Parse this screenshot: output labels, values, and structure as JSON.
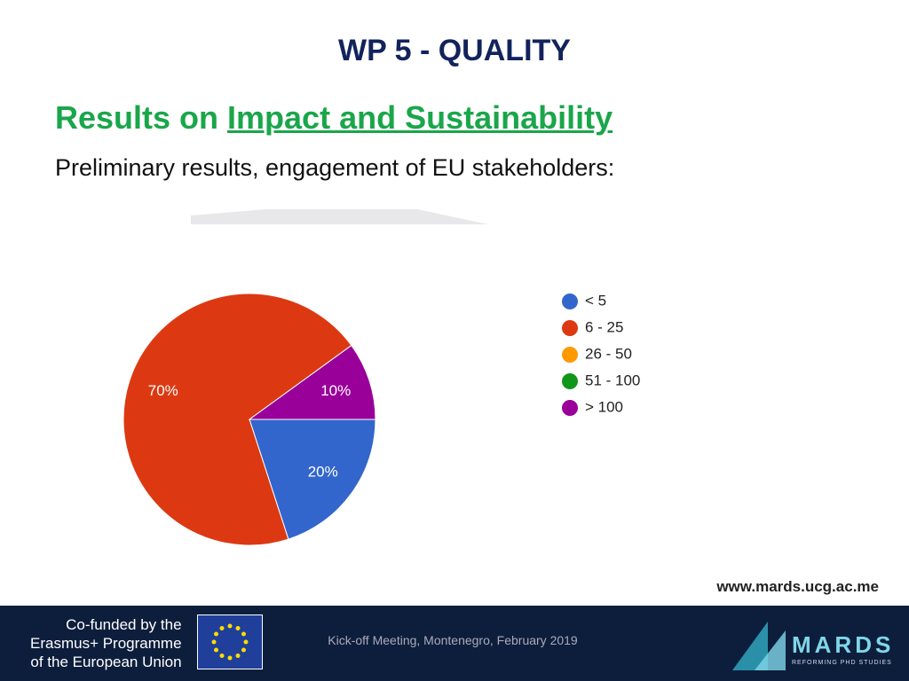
{
  "slide": {
    "title": "WP 5 -  QUALITY",
    "heading_prefix": "Results on ",
    "heading_link": "Impact and Sustainability",
    "subtitle": "Preliminary results, engagement of EU stakeholders:",
    "url": "www.mards.ucg.ac.me",
    "funding": [
      "Co-funded by the",
      "Erasmus+ Programme",
      "of the European Union"
    ],
    "event": "Kick-off Meeting, Montenegro, February 2019",
    "logo": "MARDS",
    "logo_tagline": "REFORMING PHD STUDIES"
  },
  "chart_data": {
    "type": "pie",
    "categories": [
      "< 5",
      "6 - 25",
      "26 - 50",
      "51 - 100",
      "> 100"
    ],
    "values": [
      20,
      70,
      0,
      0,
      10
    ],
    "value_labels": [
      "20%",
      "70%",
      null,
      null,
      "10%"
    ],
    "colors": [
      "#3366cc",
      "#dc3912",
      "#ff9900",
      "#109618",
      "#990099"
    ],
    "legend": "right"
  }
}
